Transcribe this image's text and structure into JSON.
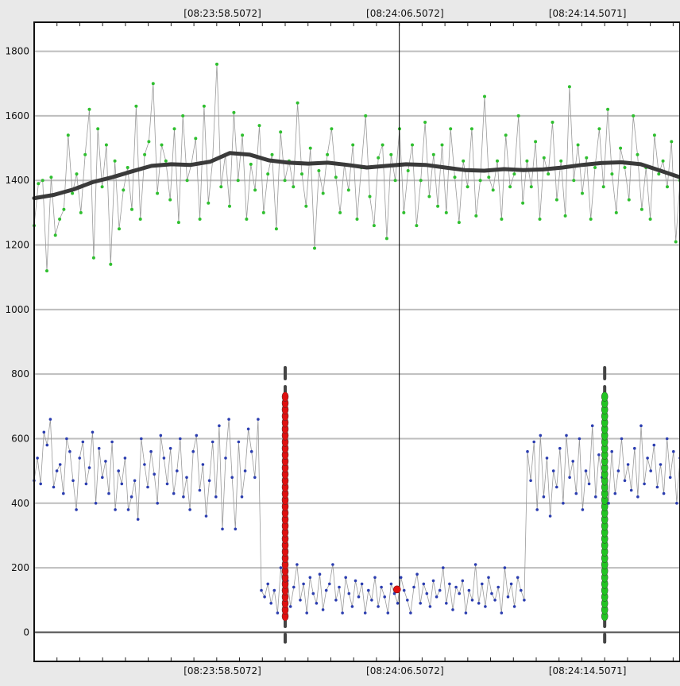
{
  "chart_data": {
    "type": "scatter",
    "title": "",
    "xlabel": "",
    "ylabel": "",
    "ylim": [
      -90,
      1890
    ],
    "yticks": [
      0,
      200,
      400,
      600,
      800,
      1000,
      1200,
      1400,
      1600,
      1800
    ],
    "ytick_labels": [
      "0",
      "200",
      "400",
      "600",
      "800",
      "1000",
      "1200",
      "1400",
      "1600",
      "1800"
    ],
    "x_time_ticks": [
      {
        "label": "[08:23:58.5072]",
        "x": 7.25
      },
      {
        "label": "[08:24:06.5072]",
        "x": 15.25
      },
      {
        "label": "[08:24:14.5071]",
        "x": 23.25
      }
    ],
    "x_bottom_ticks": [
      {
        "label": "[08:23:58.5072]",
        "x": 7.25
      },
      {
        "label": "[08:24:06.5072]",
        "x": 15.25
      },
      {
        "label": "[08:24:14.5071]",
        "x": 23.25
      }
    ],
    "xlim": [
      -1.0,
      27.3
    ],
    "cursor_x": 15.0,
    "grid": true,
    "colors": {
      "upper_series": "#2fbf2f",
      "lower_series": "#2b3db0",
      "smoothed": "#3a3a3a",
      "event_red": "#e01010",
      "event_green": "#22c422",
      "event_stem": "#444444",
      "gridline": "#bdbdbd",
      "zero_line": "#555555",
      "cursor": "#000000"
    },
    "series": [
      {
        "role": "upper-raw",
        "values": [
          1260,
          1390,
          1400,
          1120,
          1410,
          1230,
          1280,
          1310,
          1540,
          1360,
          1420,
          1300,
          1480,
          1620,
          1160,
          1560,
          1380,
          1510,
          1140,
          1460,
          1250,
          1370,
          1440,
          1310,
          1630,
          1280,
          1480,
          1520,
          1700,
          1360,
          1510,
          1460,
          1340,
          1560,
          1270,
          1600,
          1400,
          1450,
          1530,
          1280,
          1630,
          1330,
          1460,
          1760,
          1380,
          1480,
          1320,
          1610,
          1400,
          1540,
          1280,
          1450,
          1370,
          1570,
          1300,
          1420,
          1480,
          1250,
          1550,
          1400,
          1460,
          1380,
          1640,
          1420,
          1320,
          1500,
          1190,
          1430,
          1360,
          1480,
          1560,
          1410,
          1300,
          1450,
          1370,
          1510,
          1280,
          1440,
          1600,
          1350,
          1260,
          1470,
          1510,
          1220,
          1480,
          1400,
          1560,
          1300,
          1430,
          1510,
          1260,
          1400,
          1580,
          1350,
          1480,
          1320,
          1510,
          1300,
          1560,
          1410,
          1270,
          1460,
          1380,
          1560,
          1290,
          1400,
          1660,
          1410,
          1370,
          1460,
          1280,
          1540,
          1380,
          1420,
          1600,
          1330,
          1460,
          1380,
          1520,
          1280,
          1470,
          1420,
          1580,
          1340,
          1460,
          1290,
          1690,
          1400,
          1510,
          1360,
          1470,
          1280,
          1440,
          1560,
          1380,
          1620,
          1420,
          1300,
          1500,
          1440,
          1340,
          1600,
          1480,
          1310,
          1440,
          1280,
          1540,
          1420,
          1460,
          1380,
          1520,
          1210,
          1400
        ]
      },
      {
        "role": "upper-smoothed",
        "values": [
          1345,
          1355,
          1372,
          1395,
          1410,
          1428,
          1445,
          1450,
          1448,
          1458,
          1485,
          1480,
          1462,
          1455,
          1452,
          1455,
          1448,
          1440,
          1445,
          1450,
          1448,
          1440,
          1432,
          1430,
          1435,
          1432,
          1434,
          1440,
          1448,
          1454,
          1456,
          1450,
          1430,
          1410
        ]
      },
      {
        "role": "lower-raw",
        "values": [
          470,
          540,
          460,
          620,
          580,
          660,
          450,
          500,
          520,
          430,
          600,
          560,
          470,
          380,
          540,
          590,
          460,
          510,
          620,
          400,
          570,
          480,
          530,
          430,
          590,
          380,
          500,
          460,
          540,
          380,
          420,
          470,
          350,
          600,
          520,
          450,
          560,
          490,
          400,
          610,
          540,
          460,
          570,
          430,
          500,
          600,
          420,
          480,
          380,
          560,
          610,
          440,
          520,
          360,
          470,
          590,
          420,
          640,
          320,
          540,
          660,
          480,
          320,
          590,
          420,
          500,
          630,
          560,
          480,
          660,
          130,
          110,
          150,
          90,
          130,
          60,
          200,
          110,
          160,
          80,
          140,
          210,
          100,
          150,
          60,
          170,
          120,
          90,
          180,
          70,
          130,
          150,
          210,
          100,
          140,
          60,
          170,
          120,
          80,
          160,
          110,
          150,
          60,
          130,
          100,
          170,
          80,
          140,
          110,
          60,
          150,
          120,
          90,
          170,
          130,
          100,
          60,
          140,
          180,
          90,
          150,
          120,
          80,
          160,
          110,
          130,
          200,
          90,
          150,
          70,
          140,
          120,
          160,
          60,
          130,
          100,
          210,
          90,
          150,
          80,
          170,
          120,
          100,
          140,
          60,
          200,
          110,
          150,
          80,
          170,
          130,
          100,
          560,
          470,
          590,
          380,
          610,
          420,
          540,
          360,
          500,
          450,
          570,
          400,
          610,
          480,
          530,
          430,
          600,
          380,
          500,
          460,
          640,
          420,
          550,
          480,
          610,
          400,
          560,
          430,
          500,
          600,
          470,
          520,
          440,
          570,
          420,
          640,
          460,
          540,
          500,
          580,
          450,
          520,
          430,
          600,
          480,
          560,
          400,
          540
        ]
      }
    ],
    "events": [
      {
        "color": "red",
        "x": 10.0,
        "from": 50,
        "to": 730
      },
      {
        "color": "green",
        "x": 24.0,
        "from": 50,
        "to": 730
      }
    ],
    "highlight_point": {
      "x": 14.9,
      "y": 133
    }
  }
}
